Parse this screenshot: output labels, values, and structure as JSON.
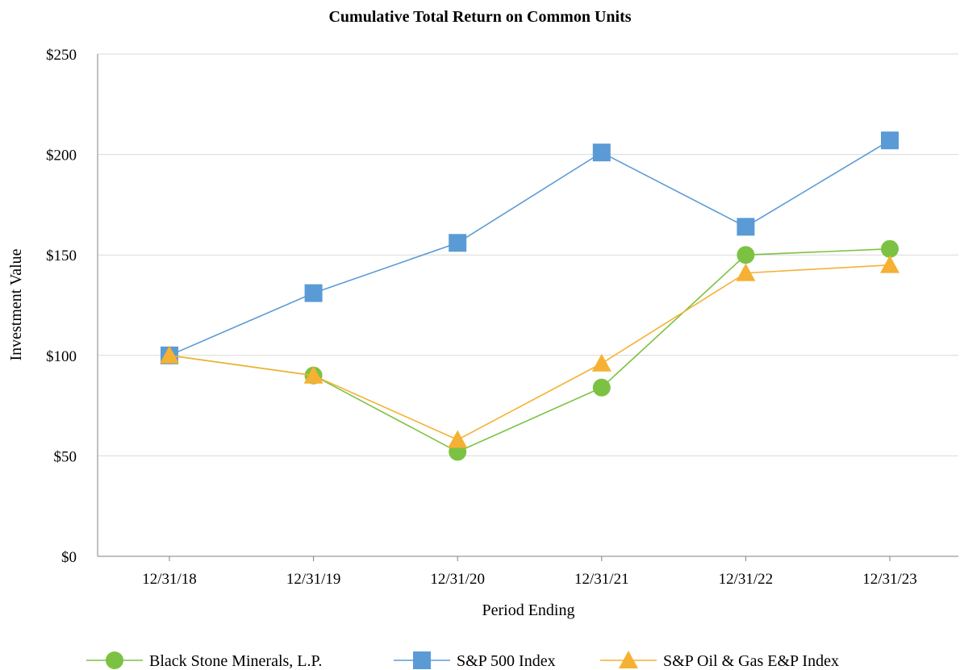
{
  "chart_data": {
    "type": "line",
    "title": "Cumulative Total Return on Common Units",
    "xlabel": "Period Ending",
    "ylabel": "Investment Value",
    "categories": [
      "12/31/18",
      "12/31/19",
      "12/31/20",
      "12/31/21",
      "12/31/22",
      "12/31/23"
    ],
    "y_ticks": [
      "$0",
      "$50",
      "$100",
      "$150",
      "$200",
      "$250"
    ],
    "ylim": [
      0,
      250
    ],
    "grid": "horizontal",
    "legend_position": "bottom",
    "series": [
      {
        "name": "Black Stone Minerals, L.P.",
        "values": [
          100,
          90,
          52,
          84,
          150,
          153
        ],
        "color": "#7cc242",
        "marker": "circle"
      },
      {
        "name": "S&P 500 Index",
        "values": [
          100,
          131,
          156,
          201,
          164,
          207
        ],
        "color": "#5b9bd5",
        "marker": "square"
      },
      {
        "name": "S&P Oil & Gas E&P Index",
        "values": [
          100,
          90,
          58,
          96,
          141,
          145
        ],
        "color": "#f5b133",
        "marker": "triangle"
      }
    ]
  }
}
